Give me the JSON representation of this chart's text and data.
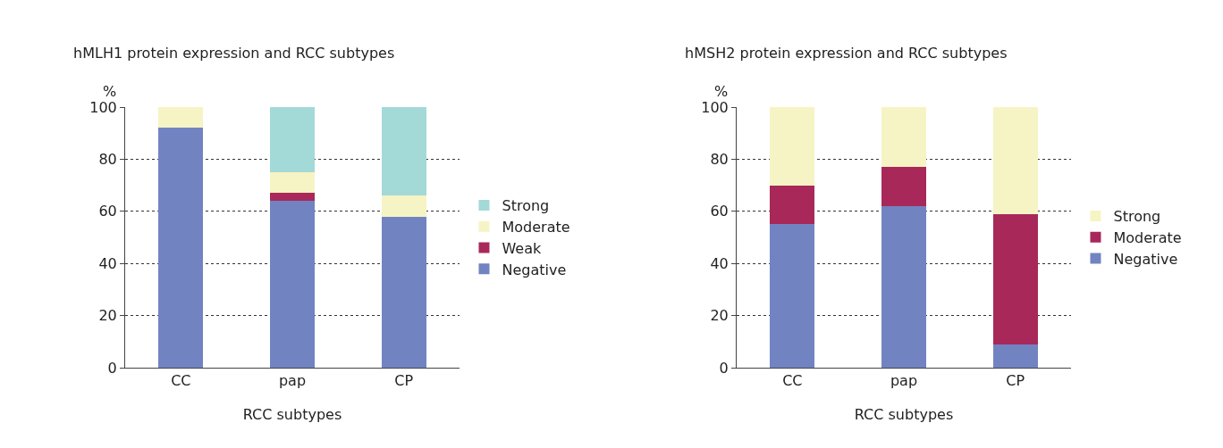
{
  "chart_data": [
    {
      "type": "bar",
      "title": "hMLH1 protein expression and RCC subtypes",
      "xlabel": "RCC subtypes",
      "ylabel": "%",
      "categories": [
        "CC",
        "pap",
        "CP"
      ],
      "stacked": true,
      "ylim": [
        0,
        100
      ],
      "yticks": [
        0,
        20,
        40,
        60,
        80,
        100
      ],
      "grid": "y",
      "legend": "right",
      "series": [
        {
          "name": "Negative",
          "color": "#7283c2",
          "values": [
            92,
            64,
            58
          ]
        },
        {
          "name": "Weak",
          "color": "#a8285a",
          "values": [
            0,
            3,
            0
          ]
        },
        {
          "name": "Moderate",
          "color": "#f6f4c4",
          "values": [
            8,
            8,
            8
          ]
        },
        {
          "name": "Strong",
          "color": "#a3d9d7",
          "values": [
            0,
            25,
            34
          ]
        }
      ]
    },
    {
      "type": "bar",
      "title": "hMSH2 protein expression and RCC subtypes",
      "xlabel": "RCC subtypes",
      "ylabel": "%",
      "categories": [
        "CC",
        "pap",
        "CP"
      ],
      "stacked": true,
      "ylim": [
        0,
        100
      ],
      "yticks": [
        0,
        20,
        40,
        60,
        80,
        100
      ],
      "grid": "y",
      "legend": "right",
      "series": [
        {
          "name": "Negative",
          "color": "#7283c2",
          "values": [
            55,
            62,
            9
          ]
        },
        {
          "name": "Moderate",
          "color": "#a8285a",
          "values": [
            15,
            15,
            50
          ]
        },
        {
          "name": "Strong",
          "color": "#f6f4c4",
          "values": [
            30,
            23,
            41
          ]
        }
      ]
    }
  ]
}
